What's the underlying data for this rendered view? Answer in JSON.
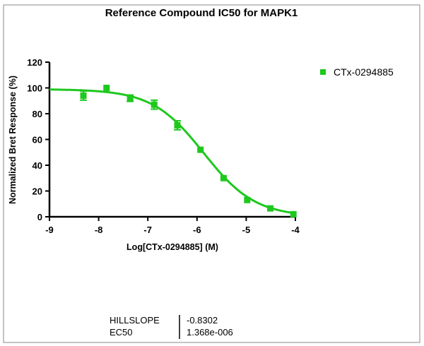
{
  "chart_data": {
    "type": "scatter",
    "title": "Reference Compound IC50 for MAPK1",
    "xlabel": "Log[CTx-0294885] (M)",
    "ylabel": "Normalized Bret Response (%)",
    "xlim": [
      -9,
      -4
    ],
    "ylim": [
      0,
      120
    ],
    "x_ticks": [
      "-9",
      "-8",
      "-7",
      "-6",
      "-5",
      "-4"
    ],
    "y_ticks": [
      "0",
      "20",
      "40",
      "60",
      "80",
      "100",
      "120"
    ],
    "grid": false,
    "legend_position": "top-right",
    "series": [
      {
        "name": "CTx-0294885",
        "color": "#1ec81e",
        "x": [
          -8.31,
          -7.84,
          -7.36,
          -6.87,
          -6.4,
          -5.93,
          -5.46,
          -4.98,
          -4.51,
          -4.04
        ],
        "y": [
          94,
          100,
          92,
          87,
          71,
          52,
          30,
          13,
          6.5,
          2
        ],
        "error": [
          3.5,
          1,
          2.5,
          3.5,
          3.5,
          1,
          1,
          1,
          1,
          1
        ]
      }
    ],
    "fit": {
      "top": 99,
      "bottom": 0,
      "hillslope": -0.8302,
      "ec50": 1.368e-06
    },
    "results_table": [
      {
        "label": "HILLSLOPE",
        "value": "-0.8302"
      },
      {
        "label": "EC50",
        "value": "1.368e-006"
      }
    ]
  }
}
